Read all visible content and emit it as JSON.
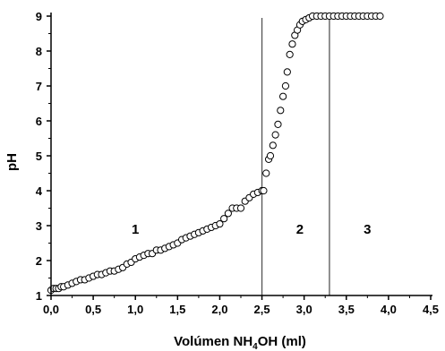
{
  "chart_data": {
    "type": "scatter",
    "title": "",
    "xlabel": {
      "pre": "Volúmen NH",
      "sub": "4",
      "post": "OH (ml)"
    },
    "ylabel": "pH",
    "xlim": [
      0.0,
      4.5
    ],
    "ylim": [
      1,
      9
    ],
    "xticks": [
      "0,0",
      "0,5",
      "1,0",
      "1,5",
      "2,0",
      "2,5",
      "3,0",
      "3,5",
      "4,0",
      "4,5"
    ],
    "yticks": [
      "1",
      "2",
      "3",
      "4",
      "5",
      "6",
      "7",
      "8",
      "9"
    ],
    "xtick_values": [
      0,
      0.5,
      1,
      1.5,
      2,
      2.5,
      3,
      3.5,
      4,
      4.5
    ],
    "ytick_values": [
      1,
      2,
      3,
      4,
      5,
      6,
      7,
      8,
      9
    ],
    "grid": false,
    "marker": "open-circle",
    "vertical_lines": [
      2.5,
      3.3
    ],
    "region_labels": [
      {
        "text": "1",
        "x": 1.0,
        "y": 2.9
      },
      {
        "text": "2",
        "x": 2.95,
        "y": 2.9
      },
      {
        "text": "3",
        "x": 3.75,
        "y": 2.9
      }
    ],
    "series": [
      {
        "x": [
          0.0,
          0.03,
          0.06,
          0.09,
          0.12,
          0.15,
          0.2,
          0.25,
          0.3,
          0.35,
          0.4,
          0.45,
          0.5,
          0.55,
          0.6,
          0.65,
          0.7,
          0.75,
          0.8,
          0.85,
          0.9,
          0.95,
          1.0,
          1.05,
          1.1,
          1.15,
          1.2,
          1.25,
          1.3,
          1.35,
          1.4,
          1.45,
          1.5,
          1.55,
          1.6,
          1.65,
          1.7,
          1.75,
          1.8,
          1.85,
          1.9,
          1.95,
          2.0,
          2.05,
          2.1,
          2.15,
          2.2,
          2.25,
          2.3,
          2.35,
          2.4,
          2.45,
          2.5,
          2.52,
          2.55,
          2.58,
          2.6,
          2.63,
          2.66,
          2.69,
          2.72,
          2.75,
          2.78,
          2.8,
          2.83,
          2.86,
          2.89,
          2.92,
          2.95,
          2.98,
          3.02,
          3.06,
          3.1,
          3.15,
          3.2,
          3.25,
          3.3,
          3.35,
          3.4,
          3.45,
          3.5,
          3.55,
          3.6,
          3.65,
          3.7,
          3.75,
          3.8,
          3.85,
          3.9
        ],
        "y": [
          1.15,
          1.2,
          1.2,
          1.2,
          1.25,
          1.25,
          1.3,
          1.35,
          1.4,
          1.45,
          1.45,
          1.5,
          1.55,
          1.6,
          1.6,
          1.65,
          1.7,
          1.7,
          1.75,
          1.8,
          1.9,
          1.95,
          2.05,
          2.1,
          2.15,
          2.2,
          2.2,
          2.3,
          2.3,
          2.35,
          2.4,
          2.45,
          2.5,
          2.6,
          2.65,
          2.7,
          2.75,
          2.8,
          2.85,
          2.9,
          2.95,
          3.0,
          3.05,
          3.2,
          3.35,
          3.5,
          3.5,
          3.5,
          3.7,
          3.8,
          3.9,
          3.95,
          4.0,
          4.0,
          4.5,
          4.9,
          5.0,
          5.3,
          5.6,
          5.9,
          6.3,
          6.7,
          7.0,
          7.4,
          7.9,
          8.2,
          8.45,
          8.6,
          8.75,
          8.85,
          8.9,
          8.95,
          9.0,
          9.0,
          9.0,
          9.0,
          9.0,
          9.0,
          9.0,
          9.0,
          9.0,
          9.0,
          9.0,
          9.0,
          9.0,
          9.0,
          9.0,
          9.0,
          9.0
        ]
      }
    ]
  }
}
